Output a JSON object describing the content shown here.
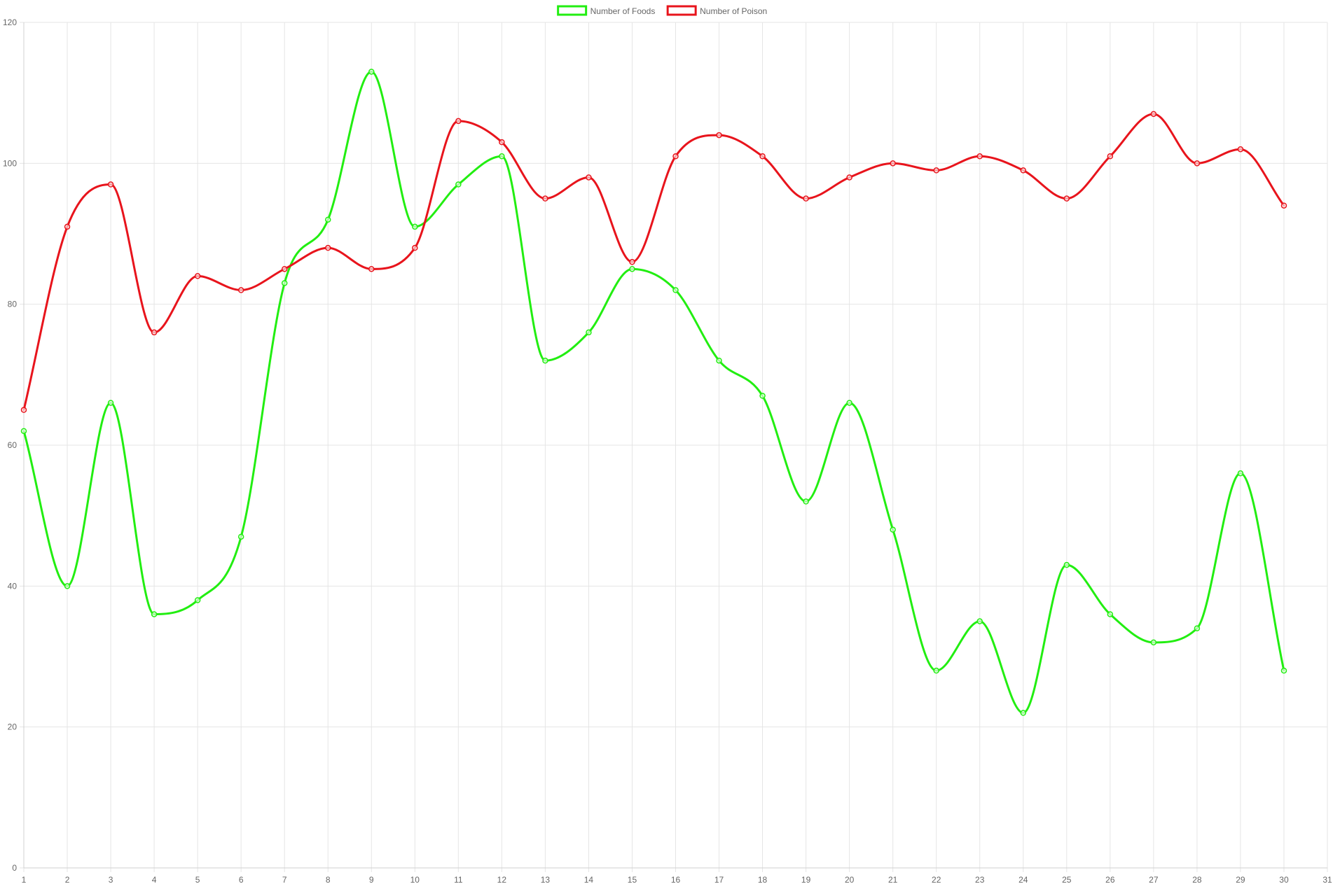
{
  "chart_data": {
    "type": "line",
    "x": [
      1,
      2,
      3,
      4,
      5,
      6,
      7,
      8,
      9,
      10,
      11,
      12,
      13,
      14,
      15,
      16,
      17,
      18,
      19,
      20,
      21,
      22,
      23,
      24,
      25,
      26,
      27,
      28,
      29,
      30
    ],
    "xlim": [
      1,
      31
    ],
    "x_ticks": [
      "1",
      "2",
      "3",
      "4",
      "5",
      "6",
      "7",
      "8",
      "9",
      "10",
      "11",
      "12",
      "13",
      "14",
      "15",
      "16",
      "17",
      "18",
      "19",
      "20",
      "21",
      "22",
      "23",
      "24",
      "25",
      "26",
      "27",
      "28",
      "29",
      "30",
      "31"
    ],
    "ylim": [
      0,
      120
    ],
    "y_ticks": [
      "0",
      "20",
      "40",
      "60",
      "80",
      "100",
      "120"
    ],
    "grid": true,
    "legend_position": "top-center",
    "series": [
      {
        "name": "Number of Foods",
        "color": "#22ee11",
        "values": [
          62,
          40,
          66,
          36,
          38,
          47,
          83,
          92,
          113,
          91,
          97,
          101,
          72,
          76,
          85,
          82,
          72,
          67,
          52,
          66,
          48,
          28,
          35,
          22,
          43,
          36,
          32,
          34,
          56,
          28
        ]
      },
      {
        "name": "Number of Poison",
        "color": "#e8141c",
        "values": [
          65,
          91,
          97,
          76,
          84,
          82,
          85,
          88,
          85,
          88,
          106,
          103,
          95,
          98,
          86,
          101,
          104,
          101,
          95,
          98,
          100,
          99,
          101,
          99,
          95,
          101,
          107,
          100,
          102,
          94
        ]
      }
    ],
    "title": "",
    "xlabel": "",
    "ylabel": ""
  }
}
